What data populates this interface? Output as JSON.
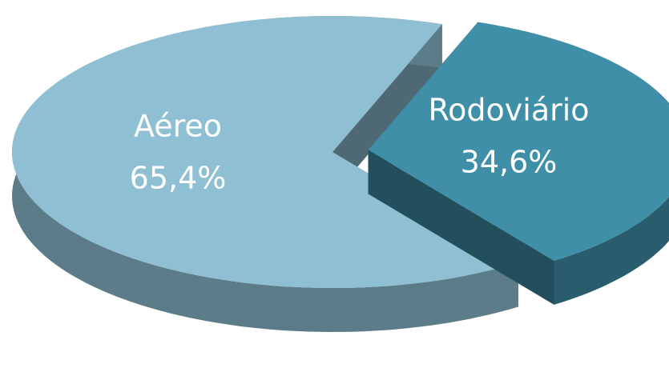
{
  "chart_data": {
    "type": "pie",
    "categories": [
      "Aéreo",
      "Rodoviário"
    ],
    "values": [
      65.4,
      34.6
    ],
    "value_labels": [
      "65,4%",
      "34,6%"
    ],
    "colors": [
      "#8fbfd3",
      "#3f8fa8"
    ]
  }
}
